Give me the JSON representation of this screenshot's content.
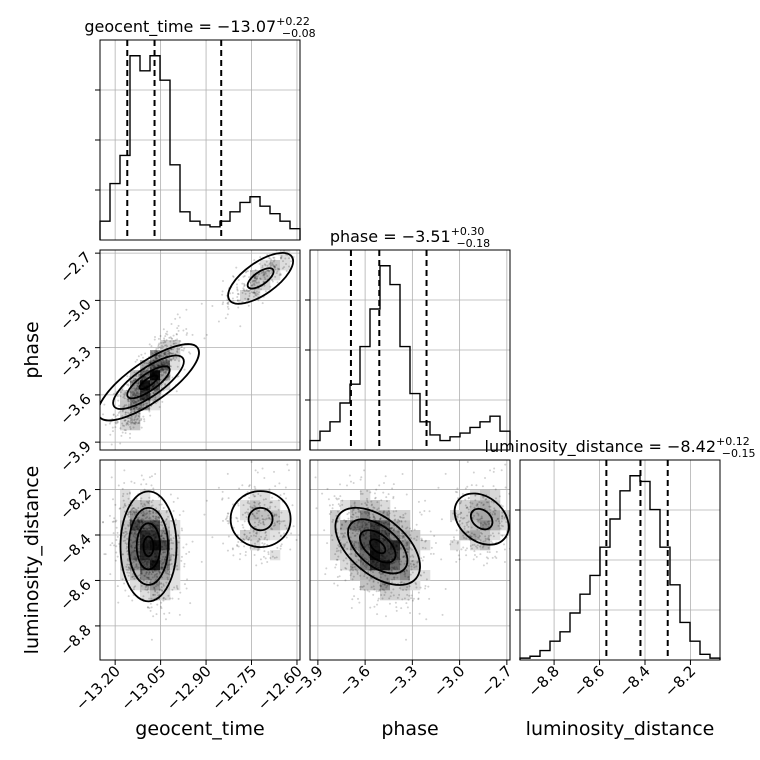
{
  "chart_data": {
    "type": "corner",
    "parameters": [
      "geocent_time",
      "phase",
      "luminosity_distance"
    ],
    "titles": [
      {
        "param": "geocent_time",
        "prefix": "geocent_time = ",
        "median": "−13.07",
        "plus": "+0.22",
        "minus": "−0.08"
      },
      {
        "param": "phase",
        "prefix": "phase = ",
        "median": "−3.51",
        "plus": "+0.30",
        "minus": "−0.18"
      },
      {
        "param": "luminosity_distance",
        "prefix": "luminosity_distance = ",
        "median": "−8.42",
        "plus": "+0.12",
        "minus": "−0.15"
      }
    ],
    "axes": {
      "geocent_time": {
        "range": [
          -13.25,
          -12.59
        ],
        "ticks": [
          -13.2,
          -13.05,
          -12.9,
          -12.75,
          -12.6
        ],
        "tick_labels": [
          "−13.20",
          "−13.05",
          "−12.90",
          "−12.75",
          "−12.60"
        ],
        "label": "geocent_time"
      },
      "phase": {
        "range": [
          -3.95,
          -2.68
        ],
        "ticks": [
          -3.9,
          -3.6,
          -3.3,
          -3.0,
          -2.7
        ],
        "tick_labels": [
          "−3.9",
          "−3.6",
          "−3.3",
          "−3.0",
          "−2.7"
        ],
        "label": "phase"
      },
      "luminosity_distance": {
        "range": [
          -8.95,
          -8.07
        ],
        "ticks": [
          -8.8,
          -8.6,
          -8.4,
          -8.2
        ],
        "tick_labels": [
          "−8.8",
          "−8.6",
          "−8.4",
          "−8.2"
        ],
        "label": "luminosity_distance"
      }
    },
    "quantiles": {
      "geocent_time": [
        -13.16,
        -13.07,
        -12.85
      ],
      "phase": [
        -3.69,
        -3.51,
        -3.21
      ],
      "luminosity_distance": [
        -8.57,
        -8.42,
        -8.3
      ]
    },
    "histograms": {
      "geocent_time": [
        0.1,
        0.3,
        0.45,
        0.98,
        0.9,
        0.98,
        0.85,
        0.4,
        0.15,
        0.1,
        0.08,
        0.07,
        0.1,
        0.15,
        0.2,
        0.23,
        0.18,
        0.14,
        0.1,
        0.06
      ],
      "phase": [
        0.05,
        0.1,
        0.15,
        0.25,
        0.35,
        0.55,
        0.75,
        0.98,
        0.88,
        0.55,
        0.3,
        0.15,
        0.08,
        0.05,
        0.07,
        0.09,
        0.12,
        0.15,
        0.18,
        0.1
      ],
      "luminosity_distance": [
        0.01,
        0.02,
        0.05,
        0.1,
        0.15,
        0.25,
        0.35,
        0.45,
        0.6,
        0.75,
        0.9,
        0.98,
        0.95,
        0.8,
        0.6,
        0.4,
        0.2,
        0.1,
        0.03,
        0.01
      ]
    },
    "modes": [
      {
        "geocent_time": -13.09,
        "phase": -3.52,
        "luminosity_distance": -8.45,
        "weight": 0.8
      },
      {
        "geocent_time": -12.72,
        "phase": -2.86,
        "luminosity_distance": -8.33,
        "weight": 0.2
      }
    ],
    "grid": true
  }
}
